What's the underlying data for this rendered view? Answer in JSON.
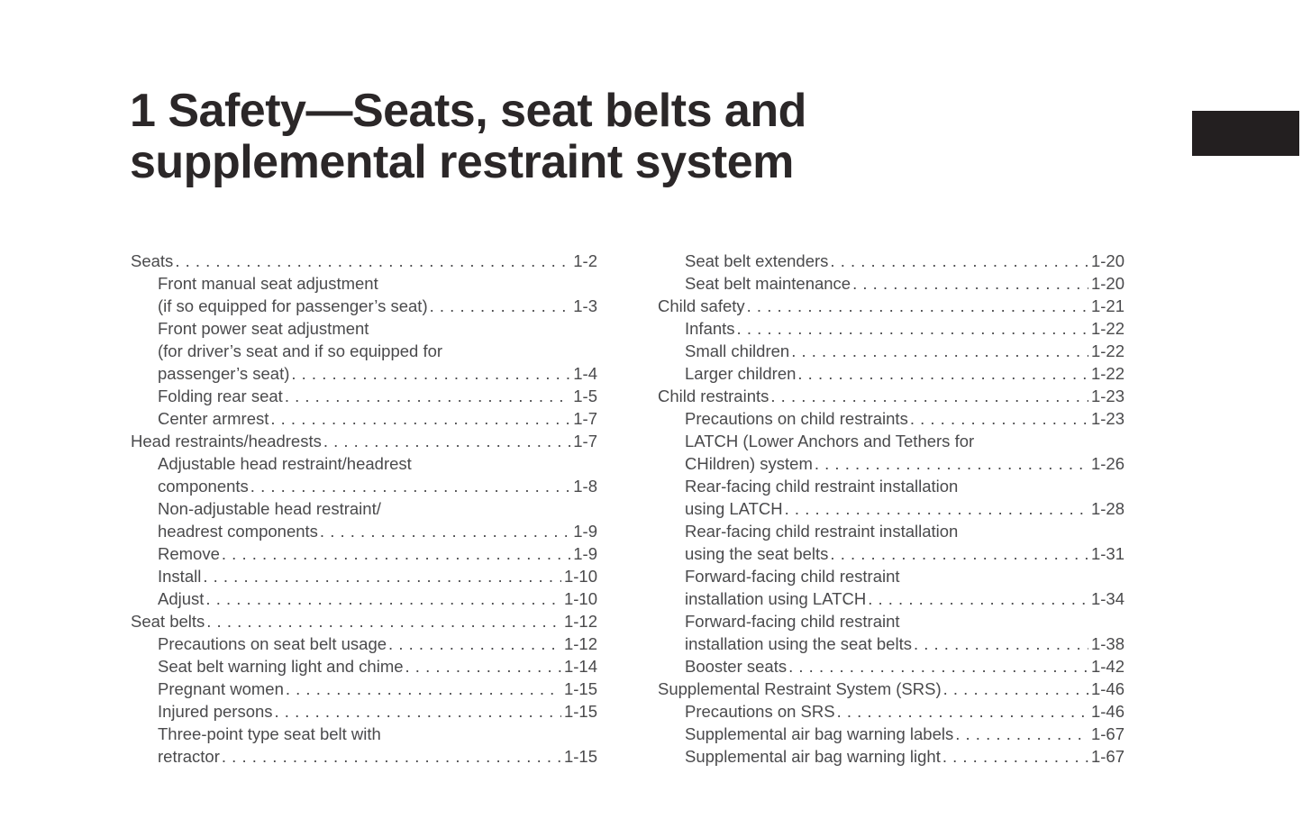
{
  "page": {
    "chapter_title": "1  Safety—Seats, seat belts and\nsupplemental restraint system"
  },
  "colors": {
    "title_text": "#2b2728",
    "body_text": "#4a4a4c",
    "chapter_tab": "#231f20",
    "background": "#ffffff"
  },
  "toc": {
    "left_column": [
      {
        "text": "Seats",
        "page": "1-2",
        "indent": 0
      },
      {
        "text": "Front manual seat adjustment",
        "page": null,
        "indent": 1
      },
      {
        "text": "(if so equipped for passenger’s seat)",
        "page": "1-3",
        "indent": 1
      },
      {
        "text": "Front power seat adjustment",
        "page": null,
        "indent": 1
      },
      {
        "text": "(for driver’s seat and if so equipped for",
        "page": null,
        "indent": 1
      },
      {
        "text": "passenger’s seat)",
        "page": "1-4",
        "indent": 1
      },
      {
        "text": "Folding rear seat",
        "page": "1-5",
        "indent": 1
      },
      {
        "text": "Center armrest",
        "page": "1-7",
        "indent": 1
      },
      {
        "text": "Head restraints/headrests",
        "page": "1-7",
        "indent": 0
      },
      {
        "text": "Adjustable head restraint/headrest",
        "page": null,
        "indent": 1
      },
      {
        "text": "components",
        "page": "1-8",
        "indent": 1
      },
      {
        "text": "Non-adjustable head restraint/",
        "page": null,
        "indent": 1
      },
      {
        "text": "headrest components",
        "page": "1-9",
        "indent": 1
      },
      {
        "text": "Remove",
        "page": "1-9",
        "indent": 1
      },
      {
        "text": "Install",
        "page": "1-10",
        "indent": 1
      },
      {
        "text": "Adjust",
        "page": "1-10",
        "indent": 1
      },
      {
        "text": "Seat belts",
        "page": "1-12",
        "indent": 0
      },
      {
        "text": "Precautions on seat belt usage",
        "page": "1-12",
        "indent": 1
      },
      {
        "text": "Seat belt warning light and chime",
        "page": "1-14",
        "indent": 1
      },
      {
        "text": "Pregnant women",
        "page": "1-15",
        "indent": 1
      },
      {
        "text": "Injured persons",
        "page": "1-15",
        "indent": 1
      },
      {
        "text": "Three-point type seat belt with",
        "page": null,
        "indent": 1
      },
      {
        "text": "retractor",
        "page": "1-15",
        "indent": 1
      }
    ],
    "right_column": [
      {
        "text": "Seat belt extenders",
        "page": "1-20",
        "indent": 1
      },
      {
        "text": "Seat belt maintenance",
        "page": "1-20",
        "indent": 1
      },
      {
        "text": "Child safety",
        "page": "1-21",
        "indent": 0
      },
      {
        "text": "Infants",
        "page": "1-22",
        "indent": 1
      },
      {
        "text": "Small children",
        "page": "1-22",
        "indent": 1
      },
      {
        "text": "Larger children",
        "page": "1-22",
        "indent": 1
      },
      {
        "text": "Child restraints",
        "page": "1-23",
        "indent": 0
      },
      {
        "text": "Precautions on child restraints",
        "page": "1-23",
        "indent": 1
      },
      {
        "text": "LATCH (Lower Anchors and Tethers for",
        "page": null,
        "indent": 1
      },
      {
        "text": "CHildren) system",
        "page": "1-26",
        "indent": 1
      },
      {
        "text": "Rear-facing child restraint installation",
        "page": null,
        "indent": 1
      },
      {
        "text": "using LATCH",
        "page": "1-28",
        "indent": 1
      },
      {
        "text": "Rear-facing child restraint installation",
        "page": null,
        "indent": 1
      },
      {
        "text": "using the seat belts",
        "page": "1-31",
        "indent": 1
      },
      {
        "text": "Forward-facing child restraint",
        "page": null,
        "indent": 1
      },
      {
        "text": "installation using LATCH",
        "page": "1-34",
        "indent": 1
      },
      {
        "text": "Forward-facing child restraint",
        "page": null,
        "indent": 1
      },
      {
        "text": "installation using the seat belts",
        "page": "1-38",
        "indent": 1
      },
      {
        "text": "Booster seats",
        "page": "1-42",
        "indent": 1
      },
      {
        "text": "Supplemental Restraint System (SRS)",
        "page": "1-46",
        "indent": 0
      },
      {
        "text": "Precautions on SRS",
        "page": "1-46",
        "indent": 1
      },
      {
        "text": "Supplemental air bag warning labels",
        "page": "1-67",
        "indent": 1
      },
      {
        "text": "Supplemental air bag warning light",
        "page": "1-67",
        "indent": 1
      }
    ]
  }
}
